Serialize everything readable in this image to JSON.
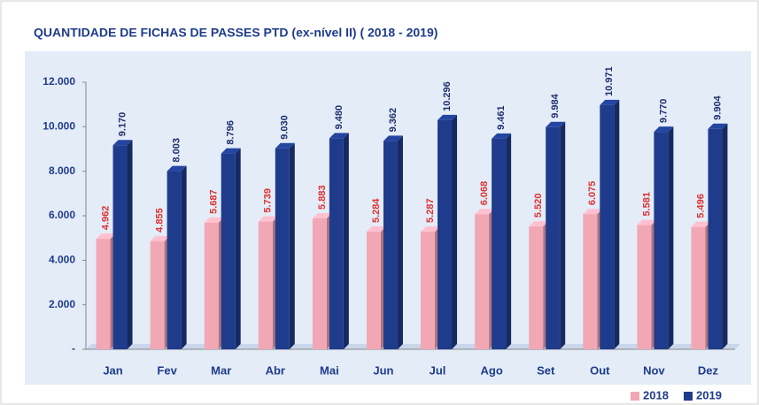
{
  "chart_data": {
    "type": "bar3d",
    "title": "QUANTIDADE DE FICHAS DE PASSES PTD (ex-nível II) ( 2018 - 2019)",
    "categories": [
      "Jan",
      "Fev",
      "Mar",
      "Abr",
      "Mai",
      "Jun",
      "Jul",
      "Ago",
      "Set",
      "Out",
      "Nov",
      "Dez"
    ],
    "series": [
      {
        "name": "2018",
        "color": "#f2a7b5",
        "values": [
          4962,
          4855,
          5687,
          5739,
          5883,
          5284,
          5287,
          6068,
          5520,
          6075,
          5581,
          5496
        ],
        "value_labels": [
          "4.962",
          "4.855",
          "5.687",
          "5.739",
          "5.883",
          "5.284",
          "5.287",
          "6.068",
          "5.520",
          "6.075",
          "5.581",
          "5.496"
        ]
      },
      {
        "name": "2019",
        "color": "#1f3c8c",
        "values": [
          9170,
          8003,
          8796,
          9030,
          9480,
          9362,
          10296,
          9461,
          9984,
          10971,
          9770,
          9904
        ],
        "value_labels": [
          "9.170",
          "8.003",
          "8.796",
          "9.030",
          "9.480",
          "9.362",
          "10.296",
          "9.461",
          "9.984",
          "10.971",
          "9.770",
          "9.904"
        ]
      }
    ],
    "ylim": [
      0,
      12000
    ],
    "yticks": [
      {
        "value": 0,
        "label": "-"
      },
      {
        "value": 2000,
        "label": "2.000"
      },
      {
        "value": 4000,
        "label": "4.000"
      },
      {
        "value": 6000,
        "label": "6.000"
      },
      {
        "value": 8000,
        "label": "8.000"
      },
      {
        "value": 10000,
        "label": "10.000"
      },
      {
        "value": 12000,
        "label": "12.000"
      }
    ],
    "grid": false,
    "legend": "bottom-right"
  }
}
